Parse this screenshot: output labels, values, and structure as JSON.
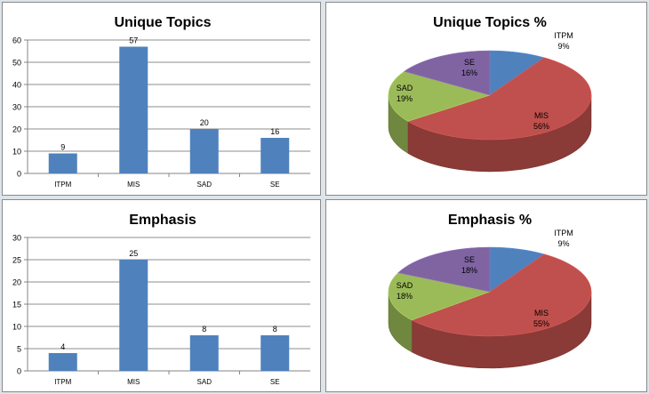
{
  "chart_data": [
    {
      "type": "bar",
      "title": "Unique Topics",
      "categories": [
        "ITPM",
        "MIS",
        "SAD",
        "SE"
      ],
      "values": [
        9,
        57,
        20,
        16
      ],
      "ylim": [
        0,
        60
      ],
      "yticks": [
        0,
        10,
        20,
        30,
        40,
        50,
        60
      ],
      "grid": true,
      "color": "#4f81bd"
    },
    {
      "type": "pie",
      "title": "Unique Topics %",
      "labels": [
        "ITPM",
        "MIS",
        "SAD",
        "SE"
      ],
      "percent_labels": [
        "9%",
        "56%",
        "19%",
        "16%"
      ],
      "values": [
        9,
        56,
        19,
        16
      ],
      "colors": [
        "#4f81bd",
        "#c0504d",
        "#9bbb59",
        "#8064a2"
      ],
      "style": "3d"
    },
    {
      "type": "bar",
      "title": "Emphasis",
      "categories": [
        "ITPM",
        "MIS",
        "SAD",
        "SE"
      ],
      "values": [
        4,
        25,
        8,
        8
      ],
      "ylim": [
        0,
        30
      ],
      "yticks": [
        0,
        5,
        10,
        15,
        20,
        25,
        30
      ],
      "grid": true,
      "color": "#4f81bd"
    },
    {
      "type": "pie",
      "title": "Emphasis %",
      "labels": [
        "ITPM",
        "MIS",
        "SAD",
        "SE"
      ],
      "percent_labels": [
        "9%",
        "55%",
        "18%",
        "18%"
      ],
      "values": [
        9,
        55,
        18,
        18
      ],
      "colors": [
        "#4f81bd",
        "#c0504d",
        "#9bbb59",
        "#8064a2"
      ],
      "style": "3d"
    }
  ]
}
